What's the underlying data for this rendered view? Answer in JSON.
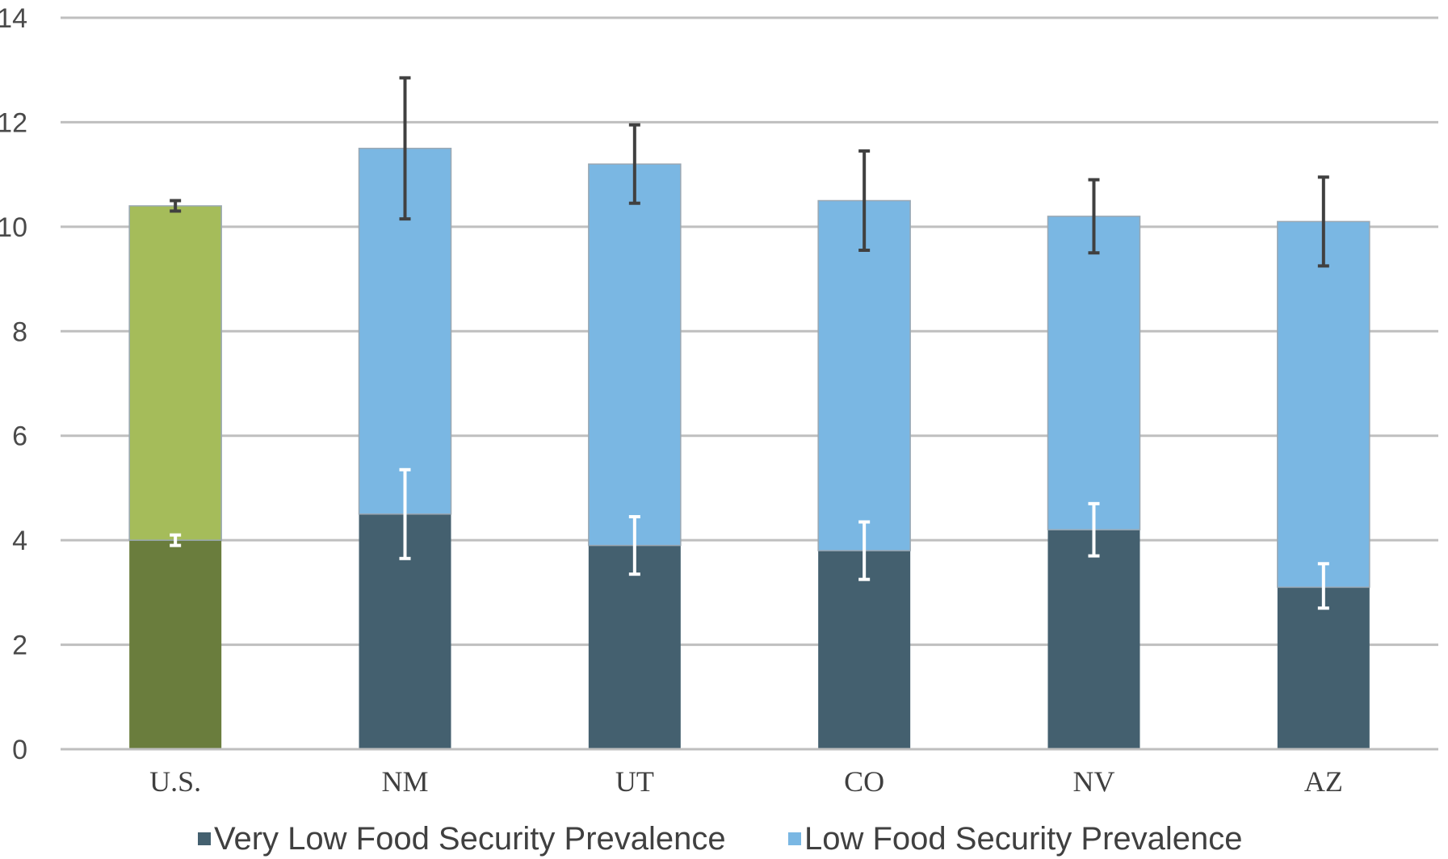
{
  "chart_data": {
    "type": "bar",
    "stacked": true,
    "categories": [
      "U.S.",
      "NM",
      "UT",
      "CO",
      "NV",
      "AZ"
    ],
    "ylim": [
      0,
      14
    ],
    "yticks": [
      0,
      2,
      4,
      6,
      8,
      10,
      12,
      14
    ],
    "yticks_labels": [
      "0",
      "2",
      "4",
      "6",
      "8",
      "10",
      "12",
      "14"
    ],
    "grid": true,
    "legend_position": "bottom",
    "series": [
      {
        "name": "Very Low Food Security Prevalence",
        "values": [
          4.0,
          4.5,
          3.9,
          3.8,
          4.2,
          3.1
        ],
        "error_low": [
          3.9,
          3.65,
          3.35,
          3.25,
          3.7,
          2.7
        ],
        "error_high": [
          4.1,
          5.35,
          4.45,
          4.35,
          4.7,
          3.55
        ],
        "color": "#44606f",
        "highlight_color": "#6a7d3d"
      },
      {
        "name": "Low Food Security Prevalence",
        "values": [
          6.4,
          7.0,
          7.3,
          6.7,
          6.0,
          7.0
        ],
        "error_low": [
          10.3,
          10.15,
          10.45,
          9.55,
          9.5,
          9.25
        ],
        "error_high": [
          10.5,
          12.85,
          11.95,
          11.45,
          10.9,
          10.95
        ],
        "color": "#7ab7e3",
        "highlight_color": "#a5bc5a"
      }
    ],
    "highlight_category": "U.S."
  }
}
